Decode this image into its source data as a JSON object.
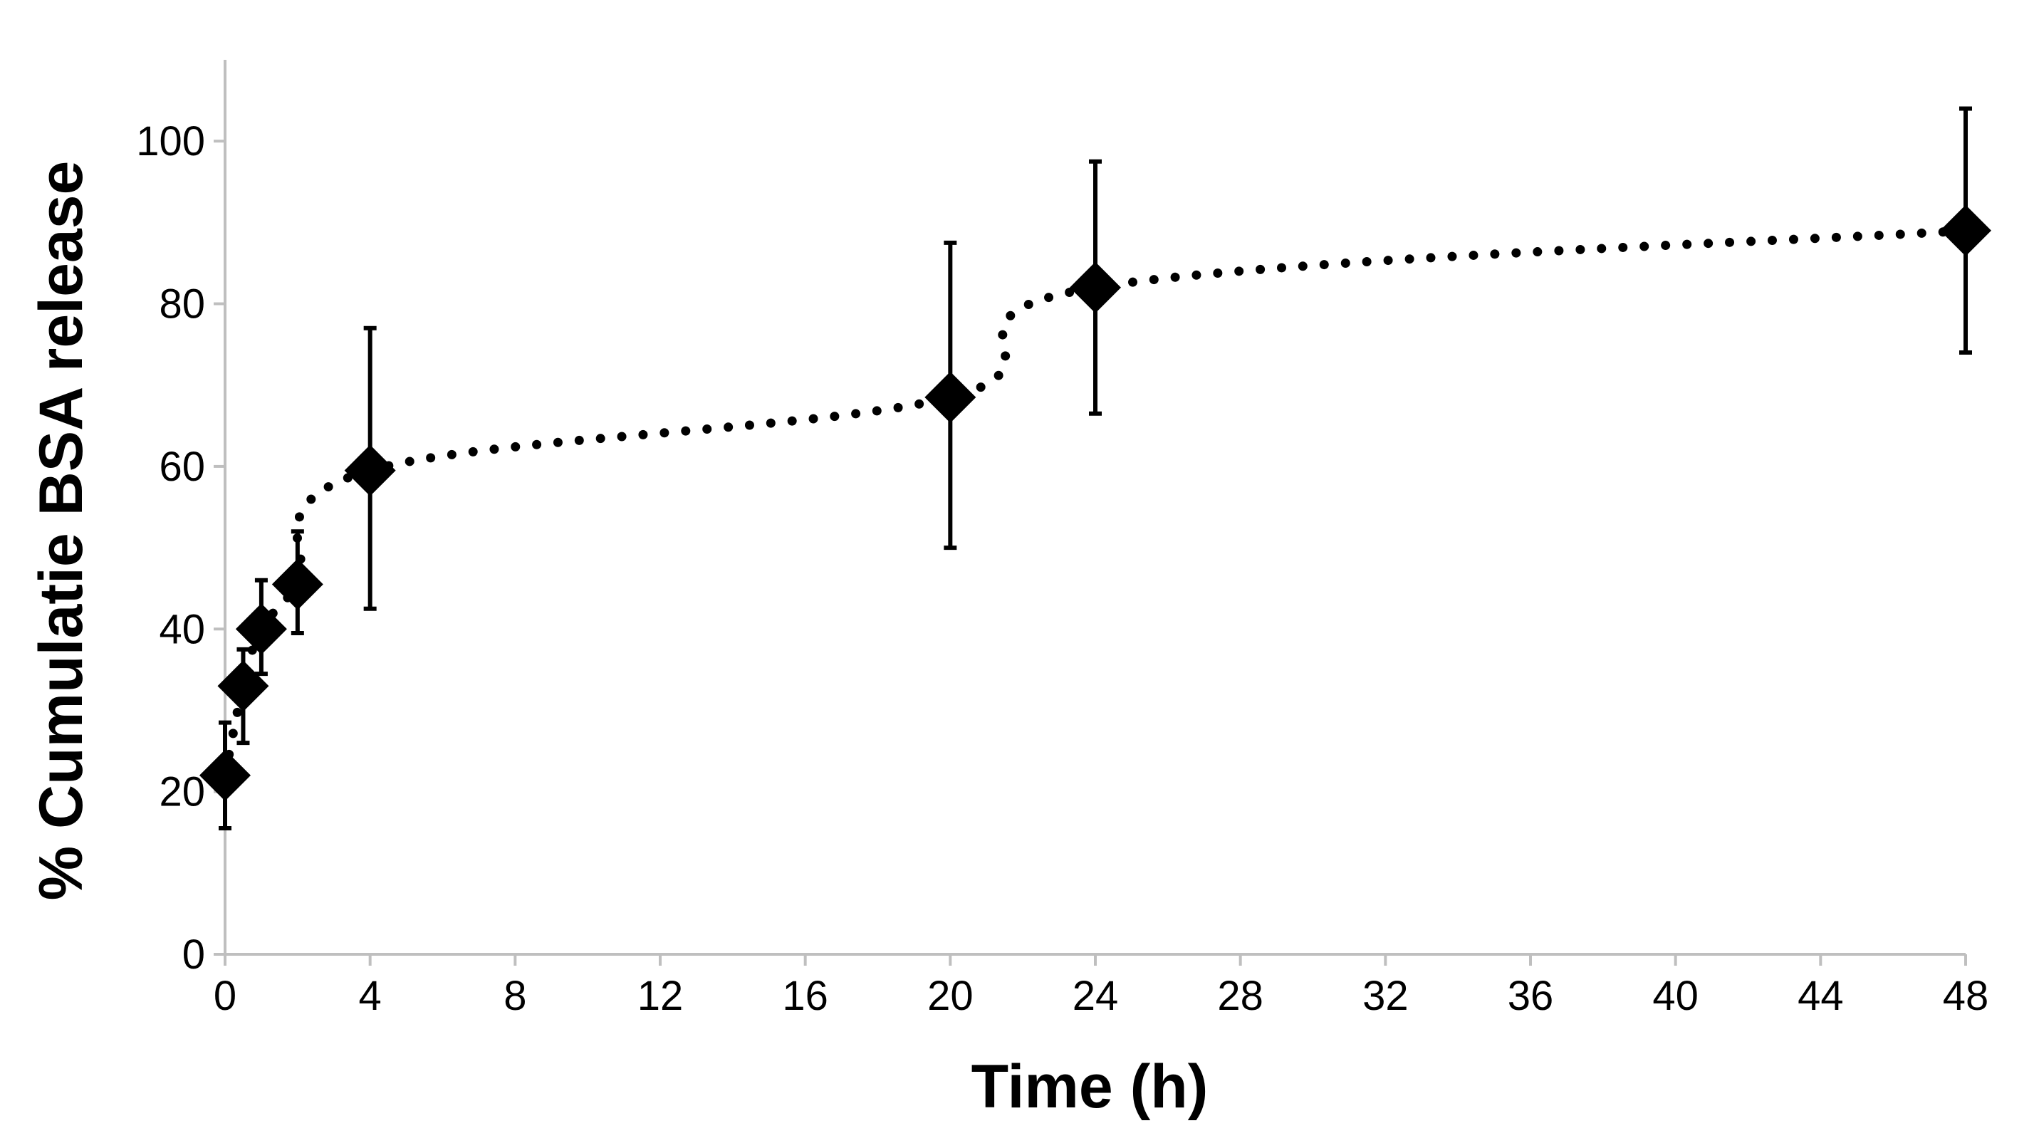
{
  "chart_data": {
    "type": "scatter",
    "title": "",
    "xlabel": "Time (h)",
    "ylabel": "% Cumulatie BSA release",
    "xlim": [
      0,
      48
    ],
    "ylim": [
      0,
      110
    ],
    "xticks": [
      "0",
      "4",
      "8",
      "12",
      "16",
      "20",
      "24",
      "28",
      "32",
      "36",
      "40",
      "44",
      "48"
    ],
    "yticks": [
      "0",
      "20",
      "40",
      "60",
      "80",
      "100"
    ],
    "grid": false,
    "legend": "none",
    "marker": "diamond",
    "marker_color": "#000000",
    "trendline": "dotted",
    "series": [
      {
        "points": [
          {
            "x": 0,
            "y": 22,
            "err_low": 6.5,
            "err_high": 6.5
          },
          {
            "x": 0.5,
            "y": 33,
            "err_low": 7,
            "err_high": 4.5
          },
          {
            "x": 1,
            "y": 40,
            "err_low": 5.5,
            "err_high": 6
          },
          {
            "x": 2,
            "y": 45.5,
            "err_low": 6,
            "err_high": 6.5
          },
          {
            "x": 4,
            "y": 59.5,
            "err_low": 17,
            "err_high": 17.5
          },
          {
            "x": 20,
            "y": 68.5,
            "err_low": 18.5,
            "err_high": 19
          },
          {
            "x": 24,
            "y": 82,
            "err_low": 15.5,
            "err_high": 15.5
          },
          {
            "x": 48,
            "y": 89,
            "err_low": 15,
            "err_high": 15
          }
        ]
      }
    ]
  }
}
